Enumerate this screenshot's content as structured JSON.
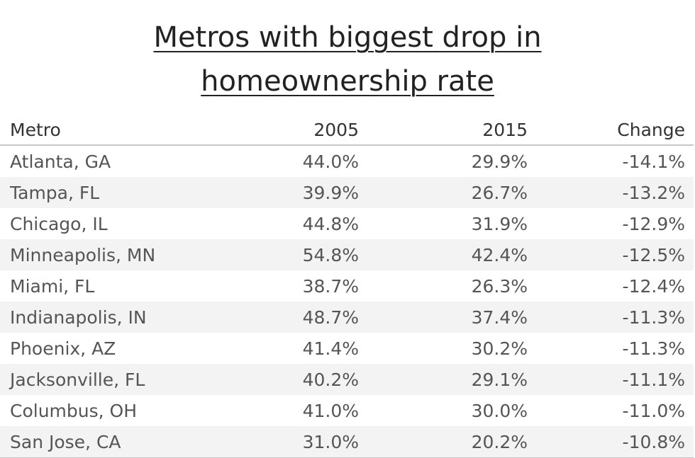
{
  "chart_data": {
    "type": "table",
    "title_line1": "Metros with biggest drop in",
    "title_line2": "homeownership rate",
    "columns": [
      "Metro",
      "2005",
      "2015",
      "Change"
    ],
    "rows": [
      [
        "Atlanta, GA",
        "44.0%",
        "29.9%",
        "-14.1%"
      ],
      [
        "Tampa, FL",
        "39.9%",
        "26.7%",
        "-13.2%"
      ],
      [
        "Chicago, IL",
        "44.8%",
        "31.9%",
        "-12.9%"
      ],
      [
        "Minneapolis, MN",
        "54.8%",
        "42.4%",
        "-12.5%"
      ],
      [
        "Miami, FL",
        "38.7%",
        "26.3%",
        "-12.4%"
      ],
      [
        "Indianapolis, IN",
        "48.7%",
        "37.4%",
        "-11.3%"
      ],
      [
        "Phoenix, AZ",
        "41.4%",
        "30.2%",
        "-11.3%"
      ],
      [
        "Jacksonville, FL",
        "40.2%",
        "29.1%",
        "-11.1%"
      ],
      [
        "Columbus, OH",
        "41.0%",
        "30.0%",
        "-11.0%"
      ],
      [
        "San Jose, CA",
        "31.0%",
        "20.2%",
        "-10.8%"
      ]
    ]
  }
}
